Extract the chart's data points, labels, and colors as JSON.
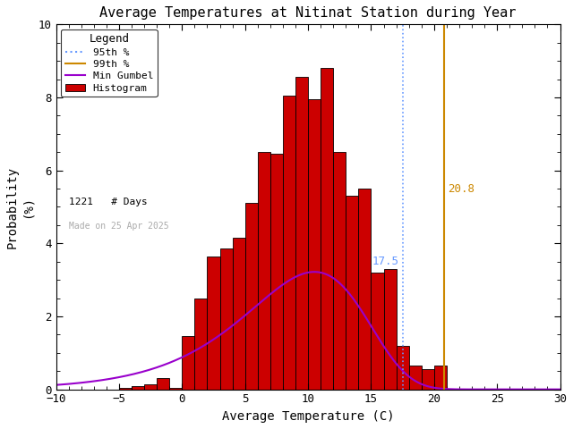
{
  "title": "Average Temperatures at Nitinat Station during Year",
  "xlabel": "Average Temperature (C)",
  "ylabel": "Probability\n(%)",
  "xlim": [
    -10,
    30
  ],
  "ylim": [
    0,
    10
  ],
  "xticks": [
    -10,
    -5,
    0,
    5,
    10,
    15,
    20,
    25,
    30
  ],
  "yticks": [
    0,
    2,
    4,
    6,
    8,
    10
  ],
  "bar_centers": [
    -9.5,
    -8.5,
    -7.5,
    -6.5,
    -5.5,
    -4.5,
    -3.5,
    -2.5,
    -1.5,
    -0.5,
    0.5,
    1.5,
    2.5,
    3.5,
    4.5,
    5.5,
    6.5,
    7.5,
    8.5,
    9.5,
    10.5,
    11.5,
    12.5,
    13.5,
    14.5,
    15.5,
    16.5,
    17.5,
    18.5,
    19.5,
    20.5,
    21.5,
    22.5,
    23.5,
    24.5,
    25.5,
    26.5,
    27.5,
    28.5,
    29.5
  ],
  "bar_heights": [
    0.0,
    0.0,
    0.0,
    0.0,
    0.0,
    0.05,
    0.1,
    0.15,
    0.3,
    0.05,
    1.45,
    2.5,
    3.65,
    3.85,
    4.15,
    5.1,
    6.5,
    6.45,
    8.05,
    8.55,
    7.95,
    8.8,
    6.5,
    5.3,
    5.5,
    3.2,
    3.3,
    1.2,
    0.65,
    0.55,
    0.65,
    0.0,
    0.0,
    0.0,
    0.0,
    0.0,
    0.0,
    0.0,
    0.0,
    0.0
  ],
  "bar_color": "#cc0000",
  "bar_edgecolor": "#000000",
  "gumbel_mu": 10.5,
  "gumbel_beta": 4.8,
  "gumbel_scale": 42.0,
  "pct95": 17.5,
  "pct99": 20.8,
  "pct95_color": "#6699ff",
  "pct99_color": "#cc8800",
  "gumbel_color": "#9900cc",
  "n_days": 1221,
  "made_on": "Made on 25 Apr 2025",
  "background_color": "#ffffff",
  "legend_title_fontsize": 9,
  "legend_fontsize": 8,
  "title_fontsize": 11,
  "axis_fontsize": 10,
  "tick_fontsize": 9
}
